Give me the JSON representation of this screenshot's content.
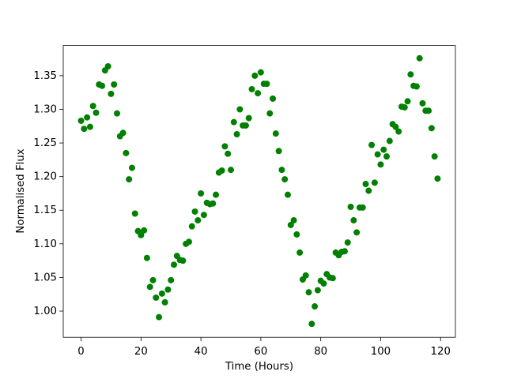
{
  "chart_data": {
    "type": "scatter",
    "x_label": "Time (Hours)",
    "y_label": "Normalised Flux",
    "color": "#008000",
    "x": [
      0,
      1,
      2,
      3,
      4,
      5,
      6,
      7,
      8,
      9,
      10,
      11,
      12,
      13,
      14,
      15,
      16,
      17,
      18,
      19,
      20,
      21,
      22,
      23,
      24,
      25,
      26,
      27,
      28,
      29,
      30,
      31,
      32,
      33,
      34,
      35,
      36,
      37,
      38,
      39,
      40,
      41,
      42,
      43,
      44,
      45,
      46,
      47,
      48,
      49,
      50,
      51,
      52,
      53,
      54,
      55,
      56,
      57,
      58,
      59,
      60,
      61,
      62,
      63,
      64,
      65,
      66,
      67,
      68,
      69,
      70,
      71,
      72,
      73,
      74,
      75,
      76,
      77,
      78,
      79,
      80,
      81,
      82,
      83,
      84,
      85,
      86,
      87,
      88,
      89,
      90,
      91,
      92,
      93,
      94,
      95,
      96,
      97,
      98,
      99,
      100,
      101,
      102,
      103,
      104,
      105,
      106,
      107,
      108,
      109,
      110,
      111,
      112,
      113,
      114,
      115,
      116,
      117,
      118,
      119
    ],
    "values": [
      1.283,
      1.271,
      1.288,
      1.274,
      1.305,
      1.295,
      1.337,
      1.335,
      1.358,
      1.364,
      1.323,
      1.337,
      1.294,
      1.26,
      1.265,
      1.235,
      1.196,
      1.213,
      1.145,
      1.119,
      1.113,
      1.12,
      1.079,
      1.036,
      1.046,
      1.02,
      0.991,
      1.026,
      1.013,
      1.032,
      1.046,
      1.069,
      1.082,
      1.076,
      1.075,
      1.1,
      1.103,
      1.126,
      1.148,
      1.135,
      1.175,
      1.143,
      1.161,
      1.159,
      1.16,
      1.173,
      1.206,
      1.209,
      1.245,
      1.234,
      1.21,
      1.281,
      1.263,
      1.3,
      1.276,
      1.276,
      1.287,
      1.33,
      1.35,
      1.324,
      1.355,
      1.338,
      1.338,
      1.294,
      1.316,
      1.264,
      1.238,
      1.21,
      1.196,
      1.173,
      1.128,
      1.135,
      1.114,
      1.087,
      1.047,
      1.053,
      1.028,
      0.981,
      1.007,
      1.031,
      1.045,
      1.041,
      1.055,
      1.05,
      1.049,
      1.087,
      1.083,
      1.088,
      1.089,
      1.102,
      1.155,
      1.135,
      1.117,
      1.154,
      1.154,
      1.189,
      1.179,
      1.247,
      1.191,
      1.233,
      1.218,
      1.24,
      1.23,
      1.253,
      1.278,
      1.274,
      1.267,
      1.304,
      1.303,
      1.312,
      1.352,
      1.335,
      1.334,
      1.376,
      1.309,
      1.298,
      1.298,
      1.272,
      1.23,
      1.197
    ],
    "xlim": [
      -5.95,
      124.95
    ],
    "xticks": [
      0,
      20,
      40,
      60,
      80,
      100,
      120
    ],
    "ylim": [
      0.961,
      1.395
    ],
    "yticks": [
      {
        "value": 1.0,
        "label": "1.00"
      },
      {
        "value": 1.05,
        "label": "1.05"
      },
      {
        "value": 1.1,
        "label": "1.10"
      },
      {
        "value": 1.15,
        "label": "1.15"
      },
      {
        "value": 1.2,
        "label": "1.20"
      },
      {
        "value": 1.25,
        "label": "1.25"
      },
      {
        "value": 1.3,
        "label": "1.30"
      },
      {
        "value": 1.35,
        "label": "1.35"
      }
    ]
  }
}
